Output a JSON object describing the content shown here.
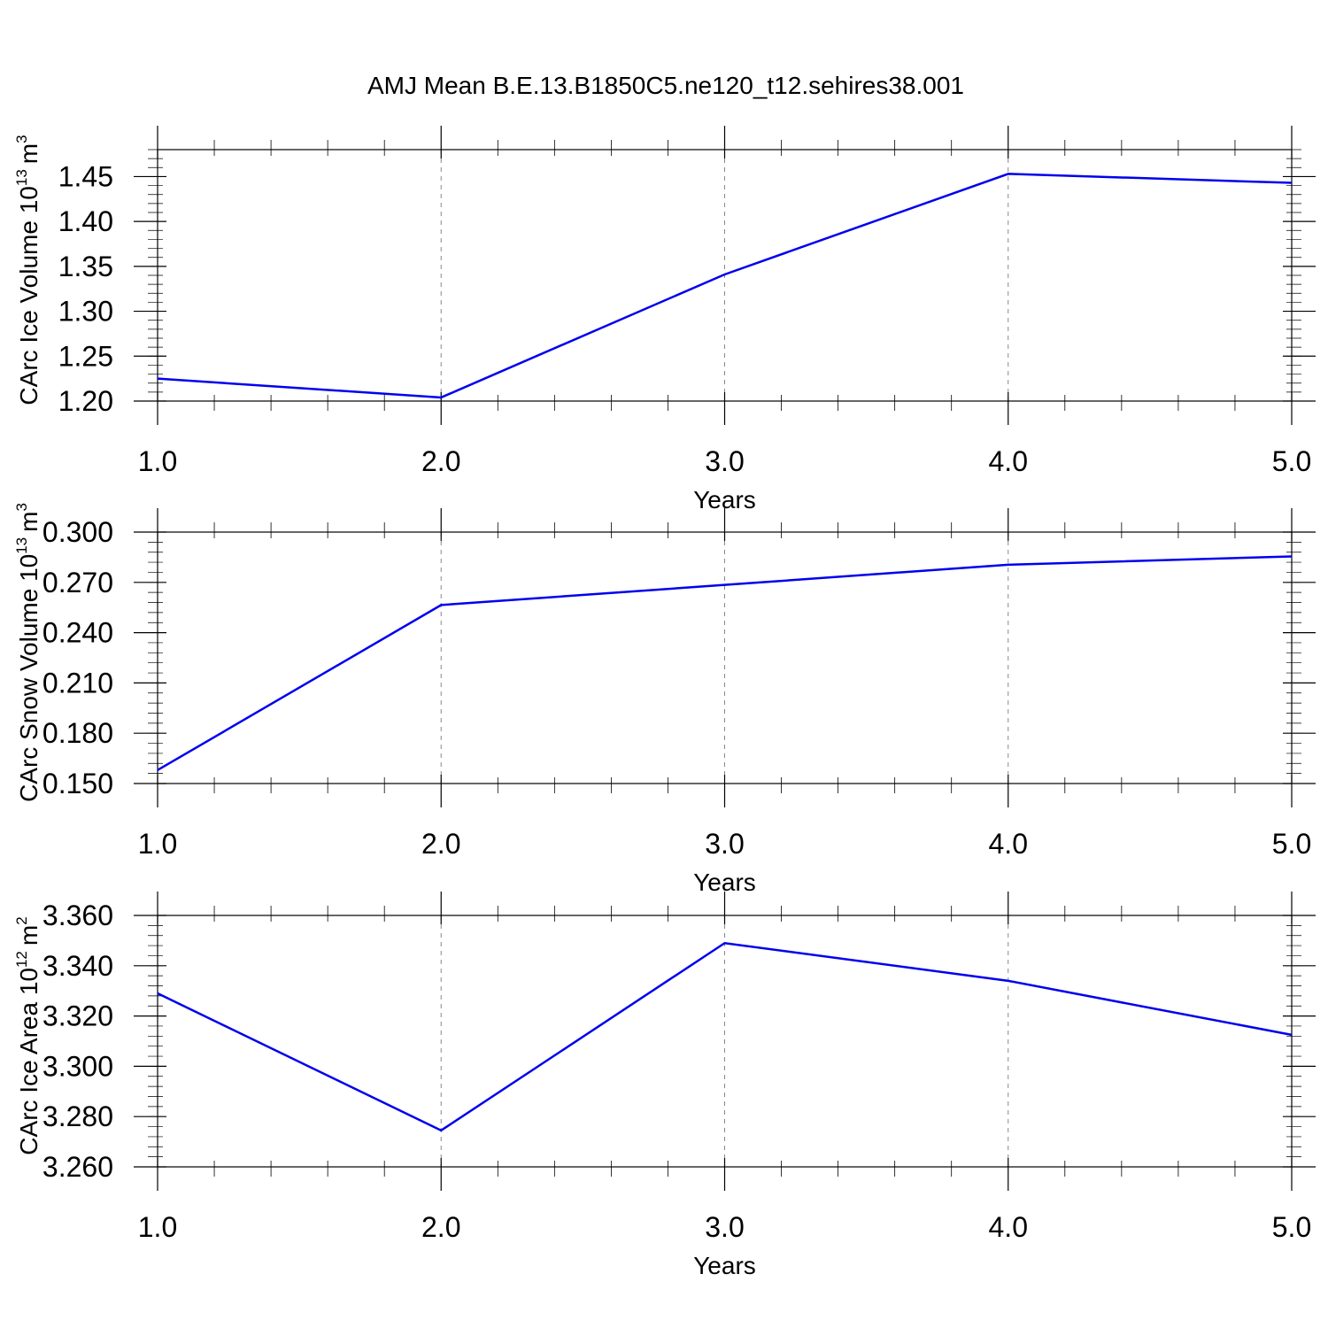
{
  "figure": {
    "title": "AMJ Mean B.E.13.B1850C5.ne120_t12.sehires38.001"
  },
  "colors": {
    "series": "#0000ee",
    "axis": "#000000",
    "grid": "#888888"
  },
  "chart_data": [
    {
      "type": "line",
      "x": [
        1.0,
        2.0,
        3.0,
        4.0,
        5.0
      ],
      "series": [
        {
          "values": [
            1.225,
            1.204,
            1.341,
            1.453,
            1.443
          ]
        }
      ],
      "xlabel": "Years",
      "ylabel": {
        "text": "CArc Ice Volume 10",
        "exponent": "13",
        "unit": "m",
        "unit_exponent": "3"
      },
      "xlim": [
        1.0,
        5.0
      ],
      "ylim": [
        1.2,
        1.48
      ],
      "xticks": [
        "1.0",
        "2.0",
        "3.0",
        "4.0",
        "5.0"
      ],
      "yticks": [
        "1.20",
        "1.25",
        "1.30",
        "1.35",
        "1.40",
        "1.45"
      ],
      "ytick_values": [
        1.2,
        1.25,
        1.3,
        1.35,
        1.4,
        1.45
      ],
      "minor_y_step": 0.01,
      "grid": "x-dashed"
    },
    {
      "type": "line",
      "x": [
        1.0,
        2.0,
        3.0,
        4.0,
        5.0
      ],
      "series": [
        {
          "values": [
            0.158,
            0.2565,
            0.2685,
            0.2805,
            0.2855
          ]
        }
      ],
      "xlabel": "Years",
      "ylabel": {
        "text": "CArc Snow Volume 10",
        "exponent": "13",
        "unit": "m",
        "unit_exponent": "3"
      },
      "xlim": [
        1.0,
        5.0
      ],
      "ylim": [
        0.15,
        0.3
      ],
      "xticks": [
        "1.0",
        "2.0",
        "3.0",
        "4.0",
        "5.0"
      ],
      "yticks": [
        "0.150",
        "0.180",
        "0.210",
        "0.240",
        "0.270",
        "0.300"
      ],
      "ytick_values": [
        0.15,
        0.18,
        0.21,
        0.24,
        0.27,
        0.3
      ],
      "minor_y_step": 0.006,
      "grid": "x-dashed"
    },
    {
      "type": "line",
      "x": [
        1.0,
        2.0,
        3.0,
        4.0,
        5.0
      ],
      "series": [
        {
          "values": [
            3.329,
            3.2745,
            3.349,
            3.334,
            3.3125
          ]
        }
      ],
      "xlabel": "Years",
      "ylabel": {
        "text": "CArc Ice Area 10",
        "exponent": "12",
        "unit": "m",
        "unit_exponent": "2"
      },
      "xlim": [
        1.0,
        5.0
      ],
      "ylim": [
        3.26,
        3.36
      ],
      "xticks": [
        "1.0",
        "2.0",
        "3.0",
        "4.0",
        "5.0"
      ],
      "yticks": [
        "3.260",
        "3.280",
        "3.300",
        "3.320",
        "3.340",
        "3.360"
      ],
      "ytick_values": [
        3.26,
        3.28,
        3.3,
        3.32,
        3.34,
        3.36
      ],
      "minor_y_step": 0.004,
      "grid": "x-dashed"
    }
  ]
}
